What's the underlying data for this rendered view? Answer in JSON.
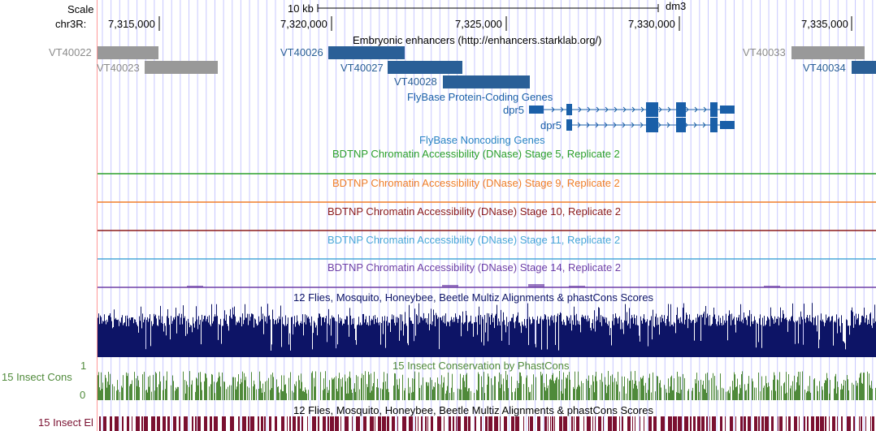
{
  "ruler": {
    "scale_label": "Scale",
    "chrom_label": "chr3R:",
    "scale_bar_text": "10 kb",
    "assembly": "dm3",
    "ticks": [
      "7,315,000",
      "7,320,000",
      "7,325,000",
      "7,330,000",
      "7,335,000"
    ]
  },
  "tracks": {
    "enhancers": {
      "title": "Embryonic enhancers (http://enhancers.starklab.org/)",
      "items": [
        "VT40022",
        "VT40023",
        "VT40026",
        "VT40027",
        "VT40028",
        "VT40033",
        "VT40034"
      ]
    },
    "flybase_coding": {
      "title": "FlyBase Protein-Coding Genes",
      "genes": [
        "dpr5",
        "dpr5"
      ]
    },
    "flybase_noncoding": {
      "title": "FlyBase Noncoding Genes"
    },
    "dnase": [
      {
        "title": "BDTNP Chromatin Accessibility (DNase) Stage 5, Replicate 2",
        "color": "#2ca02c"
      },
      {
        "title": "BDTNP Chromatin Accessibility (DNase) Stage 9, Replicate 2",
        "color": "#f07f28"
      },
      {
        "title": "BDTNP Chromatin Accessibility (DNase) Stage 10, Replicate 2",
        "color": "#8b1a1a"
      },
      {
        "title": "BDTNP Chromatin Accessibility (DNase) Stage 11, Replicate 2",
        "color": "#4aa8d8"
      },
      {
        "title": "BDTNP Chromatin Accessibility (DNase) Stage 14, Replicate 2",
        "color": "#6e3fa6"
      }
    ],
    "multiz": {
      "title": "12 Flies, Mosquito, Honeybee, Beetle Multiz Alignments & phastCons Scores",
      "color": "#0d1466"
    },
    "phastcons": {
      "title": "15 Insect Conservation by PhastCons",
      "side_label": "15 Insect Cons",
      "y_max": "1",
      "y_min": "0",
      "color": "#4f8a3a"
    },
    "multiz_el": {
      "title": "12 Flies, Mosquito, Honeybee, Beetle Multiz Alignments & phastCons Scores",
      "side_label": "15 Insect El",
      "color": "#7a1030"
    }
  },
  "colors": {
    "gray_item": "#999999",
    "gray_text": "#8c8c8c",
    "blue_item": "#2a5f97",
    "blue_text": "#2a5f97",
    "gene_blue": "#1a5fa8",
    "noncoding_text": "#2a84c4",
    "grid_line": "#c8c8ff",
    "highlight_line": "#ff9999"
  }
}
